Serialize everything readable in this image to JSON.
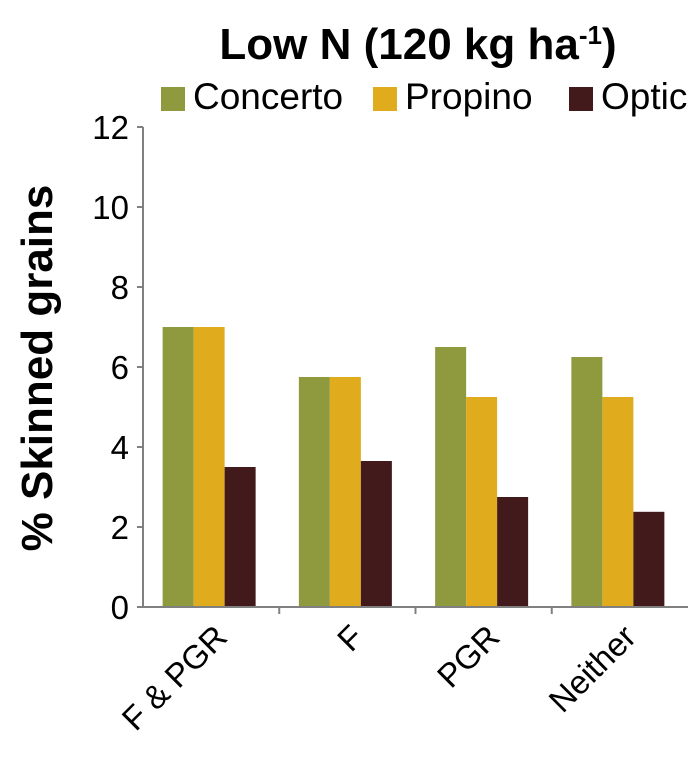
{
  "chart_data": {
    "type": "bar",
    "title": "Low N (120 kg ha",
    "title_superscript": "-1",
    "title_suffix": ")",
    "xlabel": "",
    "ylabel": "% Skinned grains",
    "ylim": [
      0,
      12
    ],
    "yticks": [
      "0",
      "2",
      "4",
      "6",
      "8",
      "10",
      "12"
    ],
    "grid": false,
    "legend_position": "top",
    "categories": [
      "F & PGR",
      "F",
      "PGR",
      "Neither"
    ],
    "series": [
      {
        "name": "Concerto",
        "color": "#8f9a3f",
        "values": [
          7.0,
          5.75,
          6.5,
          6.25
        ]
      },
      {
        "name": "Propino",
        "color": "#e0ac1d",
        "values": [
          7.0,
          5.75,
          5.25,
          5.25
        ]
      },
      {
        "name": "Optic",
        "color": "#421a1c",
        "values": [
          3.5,
          3.65,
          2.75,
          2.38
        ]
      }
    ]
  }
}
